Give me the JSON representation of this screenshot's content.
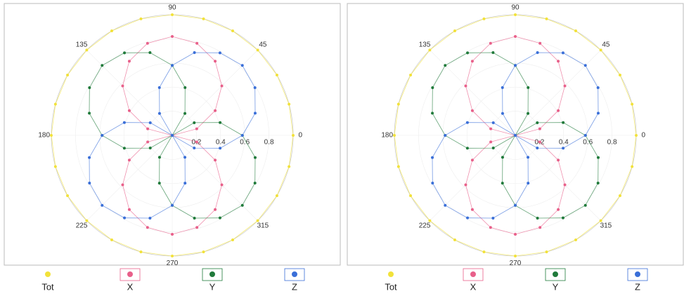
{
  "chart_data": [
    {
      "type": "polar",
      "theta": [
        0,
        15,
        30,
        45,
        60,
        75,
        90,
        105,
        120,
        135,
        150,
        165,
        180,
        195,
        210,
        225,
        240,
        255,
        270,
        285,
        300,
        315,
        330,
        345
      ],
      "series": [
        {
          "name": "Tot",
          "color": "#f2e23a",
          "values": [
            1,
            1,
            1,
            1,
            1,
            1,
            1,
            1,
            1,
            1,
            1,
            1,
            1,
            1,
            1,
            1,
            1,
            1,
            1,
            1,
            1,
            1,
            1,
            1
          ]
        },
        {
          "name": "X",
          "color": "#e8608a",
          "values": [
            0,
            0.21,
            0.41,
            0.58,
            0.71,
            0.79,
            0.82,
            0.79,
            0.71,
            0.58,
            0.41,
            0.21,
            0,
            0.21,
            0.41,
            0.58,
            0.71,
            0.79,
            0.82,
            0.79,
            0.71,
            0.58,
            0.41,
            0.21
          ]
        },
        {
          "name": "Y",
          "color": "#1f7a3a",
          "values": [
            0.58,
            0.41,
            0.21,
            0,
            0.21,
            0.41,
            0.58,
            0.71,
            0.79,
            0.82,
            0.79,
            0.71,
            0.58,
            0.41,
            0.21,
            0,
            0.21,
            0.41,
            0.58,
            0.71,
            0.79,
            0.82,
            0.79,
            0.71
          ]
        },
        {
          "name": "Z",
          "color": "#3a6fd8",
          "values": [
            0.58,
            0.71,
            0.79,
            0.82,
            0.79,
            0.71,
            0.58,
            0.41,
            0.21,
            0,
            0.21,
            0.41,
            0.58,
            0.71,
            0.79,
            0.82,
            0.79,
            0.71,
            0.58,
            0.41,
            0.21,
            0,
            0.21,
            0.41
          ]
        }
      ],
      "rlim": [
        0,
        1
      ],
      "rticks": [
        0.2,
        0.4,
        0.6,
        0.8
      ],
      "thetaticks": [
        0,
        45,
        90,
        135,
        180,
        225,
        270,
        315
      ]
    },
    {
      "type": "polar",
      "theta": [
        0,
        15,
        30,
        45,
        60,
        75,
        90,
        105,
        120,
        135,
        150,
        165,
        180,
        195,
        210,
        225,
        240,
        255,
        270,
        285,
        300,
        315,
        330,
        345
      ],
      "series": [
        {
          "name": "Tot",
          "color": "#f2e23a",
          "values": [
            1,
            1,
            1,
            1,
            1,
            1,
            1,
            1,
            1,
            1,
            1,
            1,
            1,
            1,
            1,
            1,
            1,
            1,
            1,
            1,
            1,
            1,
            1,
            1
          ]
        },
        {
          "name": "X",
          "color": "#e8608a",
          "values": [
            0,
            0.21,
            0.41,
            0.58,
            0.71,
            0.79,
            0.82,
            0.79,
            0.71,
            0.58,
            0.41,
            0.21,
            0,
            0.21,
            0.41,
            0.58,
            0.71,
            0.79,
            0.82,
            0.79,
            0.71,
            0.58,
            0.41,
            0.21
          ]
        },
        {
          "name": "Y",
          "color": "#1f7a3a",
          "values": [
            0.58,
            0.41,
            0.21,
            0,
            0.21,
            0.41,
            0.58,
            0.71,
            0.79,
            0.82,
            0.79,
            0.71,
            0.58,
            0.41,
            0.21,
            0,
            0.21,
            0.41,
            0.58,
            0.71,
            0.79,
            0.82,
            0.79,
            0.71
          ]
        },
        {
          "name": "Z",
          "color": "#3a6fd8",
          "values": [
            0.58,
            0.71,
            0.79,
            0.82,
            0.79,
            0.71,
            0.58,
            0.41,
            0.21,
            0,
            0.21,
            0.41,
            0.58,
            0.71,
            0.79,
            0.82,
            0.79,
            0.71,
            0.58,
            0.41,
            0.21,
            0,
            0.21,
            0.41
          ]
        }
      ],
      "rlim": [
        0,
        1
      ],
      "rticks": [
        0.2,
        0.4,
        0.6,
        0.8
      ],
      "thetaticks": [
        0,
        45,
        90,
        135,
        180,
        225,
        270,
        315
      ]
    }
  ]
}
